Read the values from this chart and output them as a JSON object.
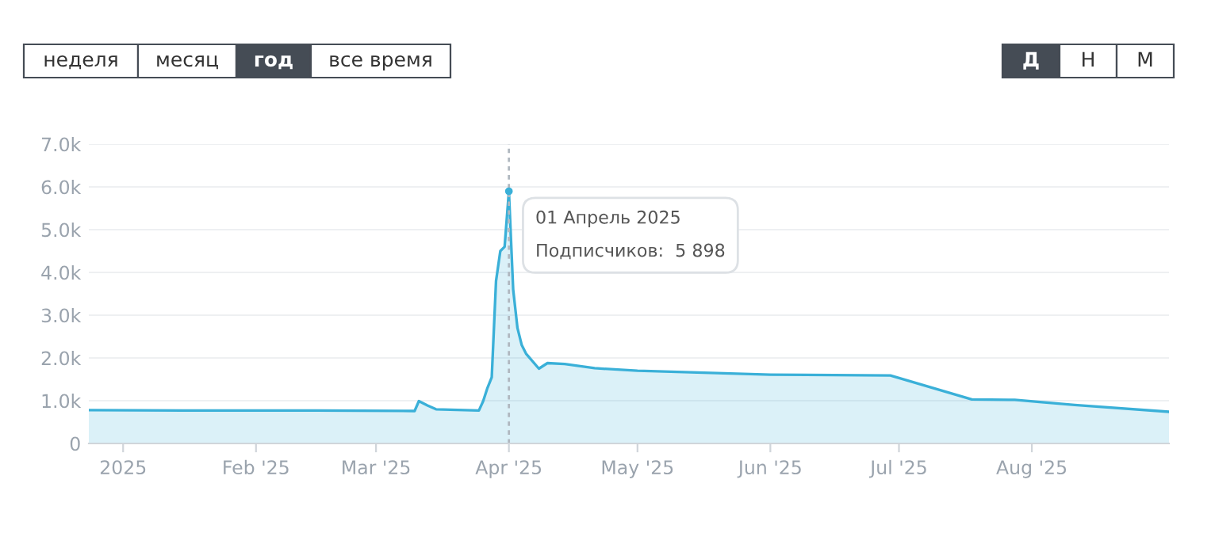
{
  "chart_data": {
    "type": "area",
    "x": [
      "2024-12-24",
      "2025-01-15",
      "2025-02-15",
      "2025-03-10",
      "2025-03-11",
      "2025-03-13",
      "2025-03-15",
      "2025-03-25",
      "2025-03-26",
      "2025-03-27",
      "2025-03-28",
      "2025-03-29",
      "2025-03-30",
      "2025-03-31",
      "2025-04-01",
      "2025-04-02",
      "2025-04-03",
      "2025-04-04",
      "2025-04-05",
      "2025-04-08",
      "2025-04-10",
      "2025-04-14",
      "2025-04-21",
      "2025-05-01",
      "2025-06-01",
      "2025-06-29",
      "2025-07-18",
      "2025-07-28",
      "2025-08-11",
      "2025-09-02"
    ],
    "series": [
      {
        "color": "#3ab0d8",
        "values": [
          780,
          770,
          770,
          760,
          990,
          890,
          800,
          770,
          990,
          1300,
          1550,
          3800,
          4500,
          4600,
          5898,
          3600,
          2700,
          2300,
          2100,
          1750,
          1880,
          1860,
          1760,
          1700,
          1610,
          1590,
          1030,
          1020,
          900,
          740
        ]
      }
    ],
    "xlim": [
      "2024-12-24",
      "2025-09-02"
    ],
    "xticks": [
      {
        "value": "2025-01-01",
        "label": "2025"
      },
      {
        "value": "2025-02-01",
        "label": "Feb '25"
      },
      {
        "value": "2025-03-01",
        "label": "Mar '25"
      },
      {
        "value": "2025-04-01",
        "label": "Apr '25"
      },
      {
        "value": "2025-05-01",
        "label": "May '25"
      },
      {
        "value": "2025-06-01",
        "label": "Jun '25"
      },
      {
        "value": "2025-07-01",
        "label": "Jul '25"
      },
      {
        "value": "2025-08-01",
        "label": "Aug '25"
      }
    ],
    "ylim": [
      0,
      7000
    ],
    "yticks": [
      0,
      {
        "value": 1000,
        "label": "1.0k"
      },
      {
        "value": 2000,
        "label": "2.0k"
      },
      {
        "value": 3000,
        "label": "3.0k"
      },
      {
        "value": 4000,
        "label": "4.0k"
      },
      {
        "value": 5000,
        "label": "5.0k"
      },
      {
        "value": 6000,
        "label": "6.0k"
      },
      {
        "value": 7000,
        "label": "7.0k"
      }
    ],
    "grid": "y",
    "ref_lines": [
      {
        "axis": "x",
        "value": "2025-04-01",
        "color": "#b0b8c0",
        "line_style": "dashed"
      }
    ],
    "annotations": [
      "неделя",
      "месяц",
      "год",
      "все время",
      "Д",
      "Н",
      "М",
      {
        "text": "01 Апрель 2025\nПодписчиков:  5 898",
        "x": "2025-04-01",
        "y": 5898
      }
    ]
  }
}
